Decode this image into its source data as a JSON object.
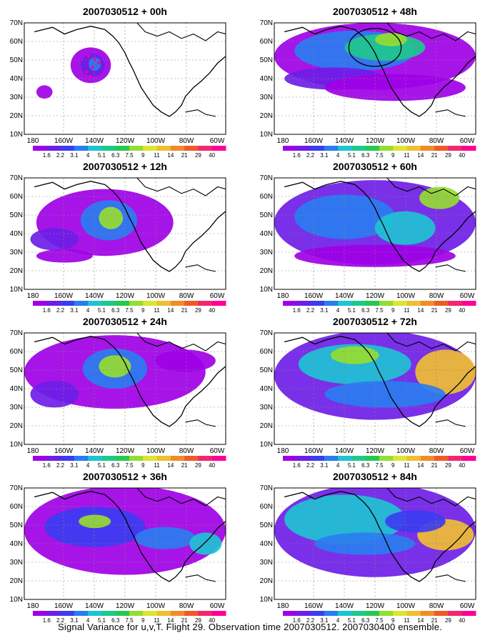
{
  "panels": [
    {
      "title": "2007030512 + 00h"
    },
    {
      "title": "2007030512 + 48h"
    },
    {
      "title": "2007030512 + 12h"
    },
    {
      "title": "2007030512 + 60h"
    },
    {
      "title": "2007030512 + 24h"
    },
    {
      "title": "2007030512 + 72h"
    },
    {
      "title": "2007030512 + 36h"
    },
    {
      "title": "2007030512 + 84h"
    }
  ],
  "lat_labels": [
    "70N",
    "60N",
    "50N",
    "40N",
    "30N",
    "20N",
    "10N"
  ],
  "lon_labels": [
    "180",
    "160W",
    "140W",
    "120W",
    "100W",
    "80W",
    "60W"
  ],
  "colorbar": {
    "labels": [
      "1.6",
      "2.2",
      "3.1",
      "4",
      "5.1",
      "6.3",
      "7.5",
      "9",
      "11",
      "14",
      "21",
      "29",
      "40"
    ],
    "colors": [
      "#a000e6",
      "#6e1ee6",
      "#3c3cf0",
      "#2a7df0",
      "#1ec3d2",
      "#1ec88c",
      "#28c850",
      "#96dc32",
      "#dce632",
      "#f0be32",
      "#f08c28",
      "#f05a28",
      "#f0286e",
      "#ff0096"
    ]
  },
  "footer": "Signal Variance for u,v,T. Flight 29. Observation time 2007030512. 2007030400 ensemble."
}
